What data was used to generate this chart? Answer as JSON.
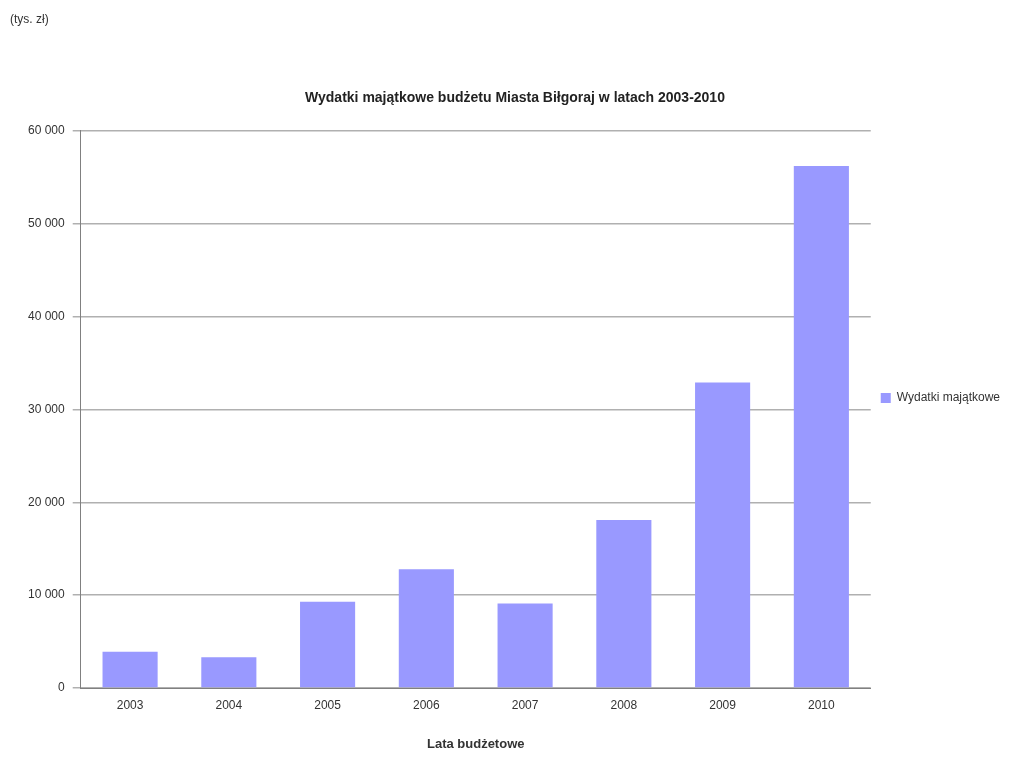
{
  "chart_data": {
    "type": "bar",
    "title": "Wydatki majątkowe budżetu Miasta Biłgoraj w latach 2003-2010",
    "xlabel": "Lata budżetowe",
    "annotations": [
      "(tys. zł)"
    ],
    "categories": [
      "2003",
      "2004",
      "2005",
      "2006",
      "2007",
      "2008",
      "2009",
      "2010"
    ],
    "series": [
      {
        "name": "Wydatki majątkowe",
        "color": "#9999ff",
        "values": [
          3900,
          3300,
          9300,
          12800,
          9100,
          18100,
          32900,
          56200
        ]
      }
    ],
    "ylim": [
      0,
      60000
    ],
    "yticks": [
      {
        "value": 0,
        "label": "0"
      },
      {
        "value": 10000,
        "label": "10 000"
      },
      {
        "value": 20000,
        "label": "20 000"
      },
      {
        "value": 30000,
        "label": "30 000"
      },
      {
        "value": 40000,
        "label": "40 000"
      },
      {
        "value": 50000,
        "label": "50 000"
      },
      {
        "value": 60000,
        "label": "60 000"
      }
    ],
    "grid": "y",
    "legend": "right"
  }
}
